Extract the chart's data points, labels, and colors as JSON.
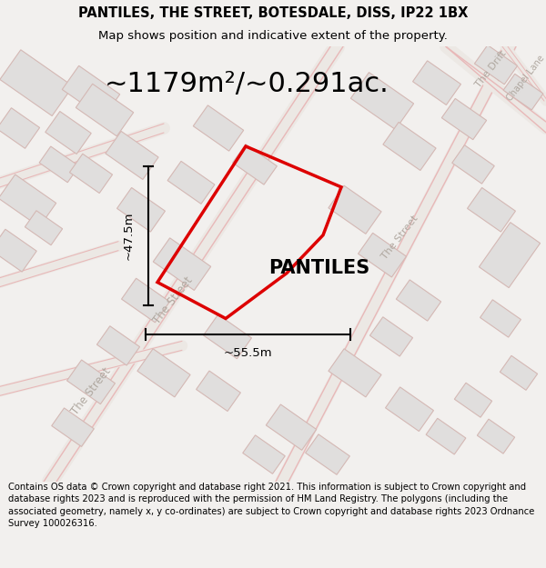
{
  "title_line1": "PANTILES, THE STREET, BOTESDALE, DISS, IP22 1BX",
  "title_line2": "Map shows position and indicative extent of the property.",
  "property_label": "PANTILES",
  "area_label": "~1179m²/~0.291ac.",
  "dim_vertical": "~47.5m",
  "dim_horizontal": "~55.5m",
  "footer_text": "Contains OS data © Crown copyright and database right 2021. This information is subject to Crown copyright and database rights 2023 and is reproduced with the permission of HM Land Registry. The polygons (including the associated geometry, namely x, y co-ordinates) are subject to Crown copyright and database rights 2023 Ordnance Survey 100026316.",
  "bg_color": "#f2f0ee",
  "map_bg": "#f5f3f0",
  "building_fill": "#e0dedd",
  "building_edge": "#d4b8b4",
  "street_color": "#e8b8b8",
  "red_color": "#dd0000",
  "road_label_color": "#b0a8a0",
  "title_fontsize": 10.5,
  "subtitle_fontsize": 9.5,
  "area_fontsize": 22,
  "footer_fontsize": 7.2
}
